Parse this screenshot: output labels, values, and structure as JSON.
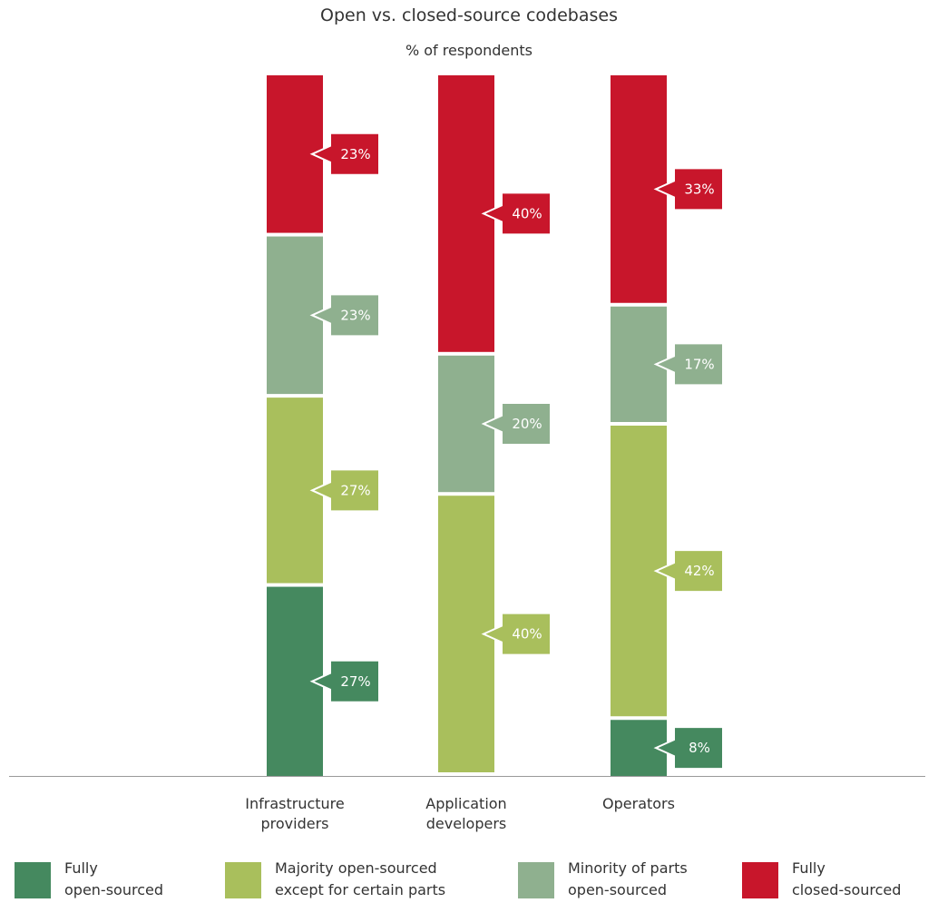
{
  "chart_data": {
    "type": "bar",
    "stacked": true,
    "title": "Open vs. closed-source codebases",
    "subtitle": "% of respondents",
    "categories": [
      "Infrastructure providers",
      "Application developers",
      "Operators"
    ],
    "category_lines": [
      [
        "Infrastructure",
        "providers"
      ],
      [
        "Application",
        "developers"
      ],
      [
        "Operators"
      ]
    ],
    "series": [
      {
        "name": "Fully open-sourced",
        "legend_lines": [
          "Fully",
          "open-sourced"
        ],
        "color": "#45895f",
        "values": [
          27,
          0,
          8
        ]
      },
      {
        "name": "Majority open-sourced except for certain parts",
        "legend_lines": [
          "Majority open-sourced",
          "except for certain parts"
        ],
        "color": "#a9bf5c",
        "values": [
          27,
          40,
          42
        ]
      },
      {
        "name": "Minority of parts open-sourced",
        "legend_lines": [
          "Minority of parts",
          "open-sourced"
        ],
        "color": "#8fb08f",
        "values": [
          23,
          20,
          17
        ]
      },
      {
        "name": "Fully closed-sourced",
        "legend_lines": [
          "Fully",
          "closed-sourced"
        ],
        "color": "#c8162b",
        "values": [
          23,
          40,
          33
        ]
      }
    ],
    "value_suffix": "%",
    "ylim": [
      0,
      100
    ],
    "grid": false,
    "legend_position": "bottom"
  }
}
